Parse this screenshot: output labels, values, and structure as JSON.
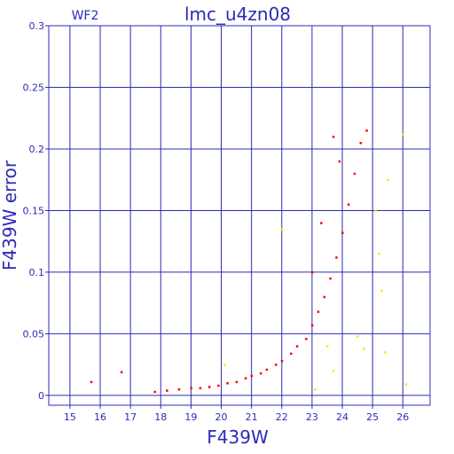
{
  "chart_data": {
    "type": "scatter",
    "title": "lmc_u4zn08",
    "subtitle": "WF2",
    "xlabel": "F439W",
    "ylabel": "F439W error",
    "xlim": [
      14.3,
      26.9
    ],
    "ylim": [
      -0.008,
      0.3
    ],
    "x_ticks": [
      15,
      16,
      17,
      18,
      19,
      20,
      21,
      22,
      23,
      24,
      25,
      26
    ],
    "y_ticks": [
      0,
      0.05,
      0.1,
      0.15,
      0.2,
      0.25,
      0.3
    ],
    "y_tick_labels": [
      "0",
      "0.05",
      "0.1",
      "0.15",
      "0.2",
      "0.25",
      "0.3"
    ],
    "grid": true,
    "colors": {
      "axes": "#2b2bb8",
      "main_series": "#ff0000",
      "secondary_series": "#ffe600"
    },
    "series": [
      {
        "color": "#ff0000",
        "points": [
          [
            15.7,
            0.011
          ],
          [
            16.7,
            0.019
          ],
          [
            17.8,
            0.003
          ],
          [
            18.2,
            0.004
          ],
          [
            18.6,
            0.005
          ],
          [
            19.0,
            0.006
          ],
          [
            19.3,
            0.006
          ],
          [
            19.6,
            0.007
          ],
          [
            19.9,
            0.008
          ],
          [
            20.2,
            0.01
          ],
          [
            20.5,
            0.011
          ],
          [
            20.8,
            0.014
          ],
          [
            21.0,
            0.016
          ],
          [
            21.3,
            0.018
          ],
          [
            21.5,
            0.021
          ],
          [
            21.8,
            0.025
          ],
          [
            22.0,
            0.028
          ],
          [
            22.3,
            0.034
          ],
          [
            22.5,
            0.04
          ],
          [
            22.8,
            0.046
          ],
          [
            23.0,
            0.057
          ],
          [
            23.2,
            0.068
          ],
          [
            23.4,
            0.08
          ],
          [
            23.6,
            0.095
          ],
          [
            23.8,
            0.112
          ],
          [
            24.0,
            0.132
          ],
          [
            24.2,
            0.155
          ],
          [
            24.4,
            0.18
          ],
          [
            24.6,
            0.205
          ],
          [
            24.8,
            0.215
          ],
          [
            23.0,
            0.1
          ],
          [
            23.3,
            0.14
          ],
          [
            23.7,
            0.21
          ],
          [
            23.9,
            0.19
          ]
        ]
      },
      {
        "color": "#ffe600",
        "points": [
          [
            20.1,
            0.025
          ],
          [
            22.0,
            0.135
          ],
          [
            23.5,
            0.04
          ],
          [
            23.7,
            0.02
          ],
          [
            24.5,
            0.048
          ],
          [
            24.7,
            0.038
          ],
          [
            25.1,
            0.15
          ],
          [
            25.2,
            0.115
          ],
          [
            25.3,
            0.085
          ],
          [
            25.5,
            0.175
          ],
          [
            26.0,
            0.212
          ],
          [
            26.1,
            0.009
          ],
          [
            25.4,
            0.035
          ],
          [
            23.1,
            0.005
          ]
        ]
      }
    ]
  }
}
